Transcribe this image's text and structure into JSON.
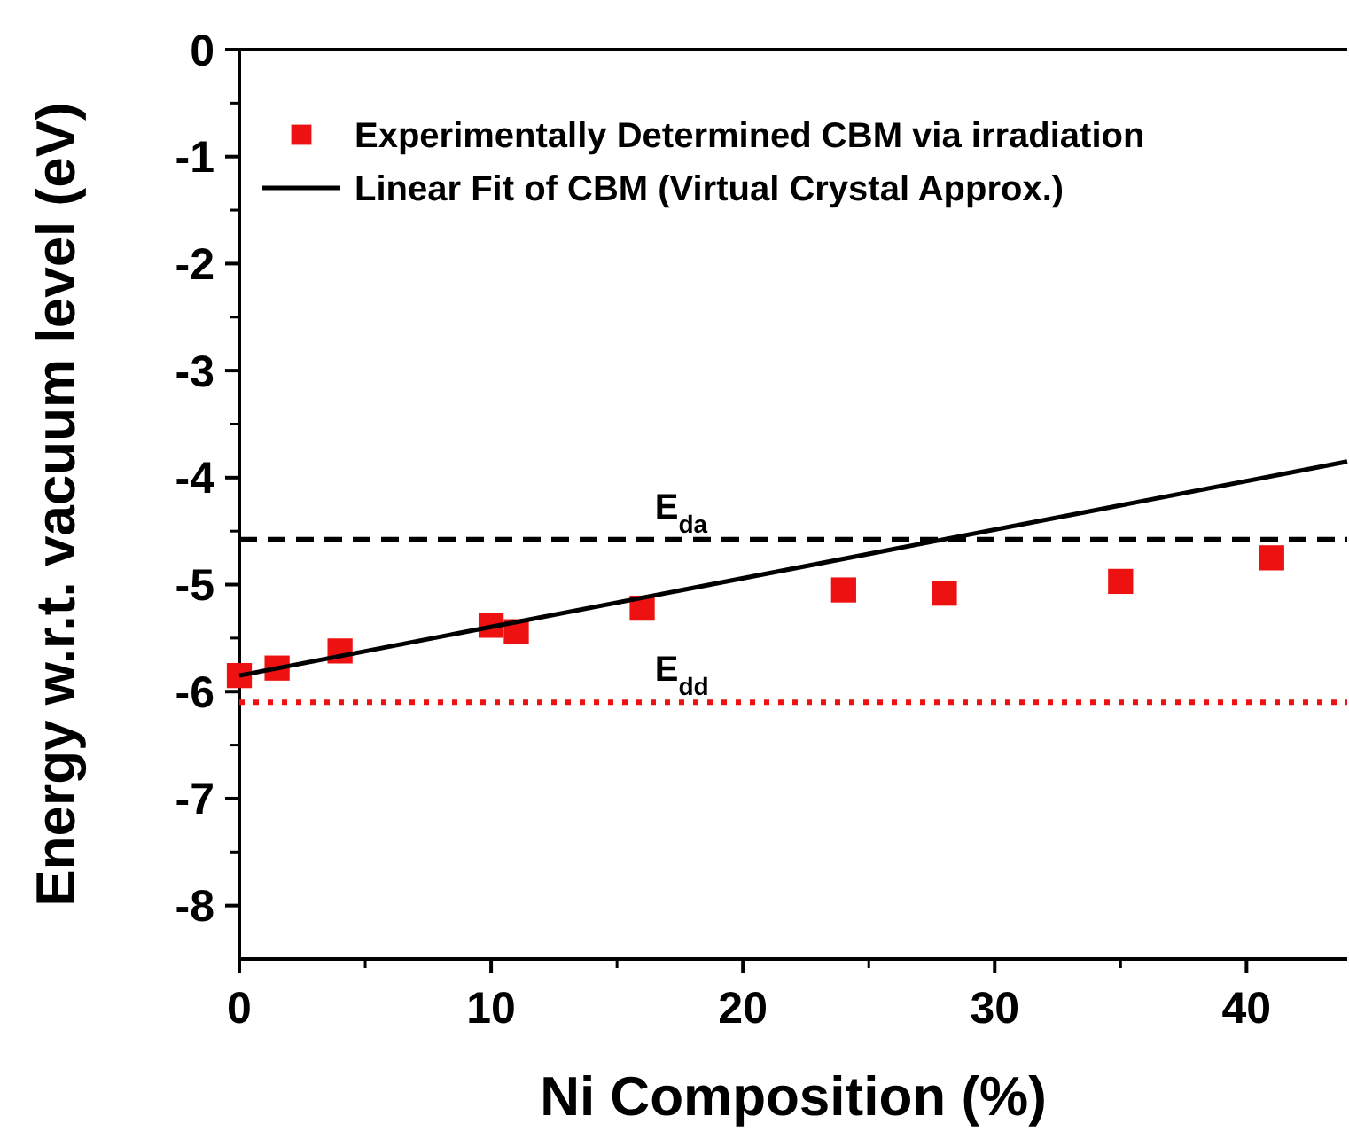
{
  "chart_data": {
    "type": "scatter",
    "xlabel": "Ni Composition (%)",
    "ylabel": "Energy w.r.t. vacuum level (eV)",
    "xlim": [
      0,
      44
    ],
    "xticks": [
      0,
      10,
      20,
      30,
      40
    ],
    "ylim": [
      -8.5,
      0
    ],
    "yticks": [
      -8,
      -7,
      -6,
      -5,
      -4,
      -3,
      -2,
      -1,
      0
    ],
    "grid": false,
    "legend": "top left",
    "marker": "square",
    "series": [
      {
        "name": "Experimentally Determined CBM via irradiation",
        "color": "#ee1111",
        "x": [
          0,
          1.5,
          4,
          10,
          11,
          16,
          24,
          28,
          35,
          41
        ],
        "values": [
          -5.85,
          -5.78,
          -5.62,
          -5.38,
          -5.44,
          -5.22,
          -5.05,
          -5.08,
          -4.97,
          -4.75
        ]
      },
      {
        "name": "Linear Fit of CBM (Virtual Crystal Approx.)",
        "type": "line",
        "color": "#000000",
        "x": [
          0,
          44
        ],
        "values": [
          -5.85,
          -3.85
        ],
        "marker": "none",
        "line_style": "solid"
      }
    ],
    "ref_lines": [
      {
        "axis": "y",
        "value": -4.58,
        "label": "E$_{da}$",
        "color": "#000000",
        "line_style": "dashed"
      },
      {
        "axis": "y",
        "value": -6.1,
        "label": "E$_{dd}$",
        "color": "#ee1111",
        "line_style": "dotted"
      }
    ]
  }
}
